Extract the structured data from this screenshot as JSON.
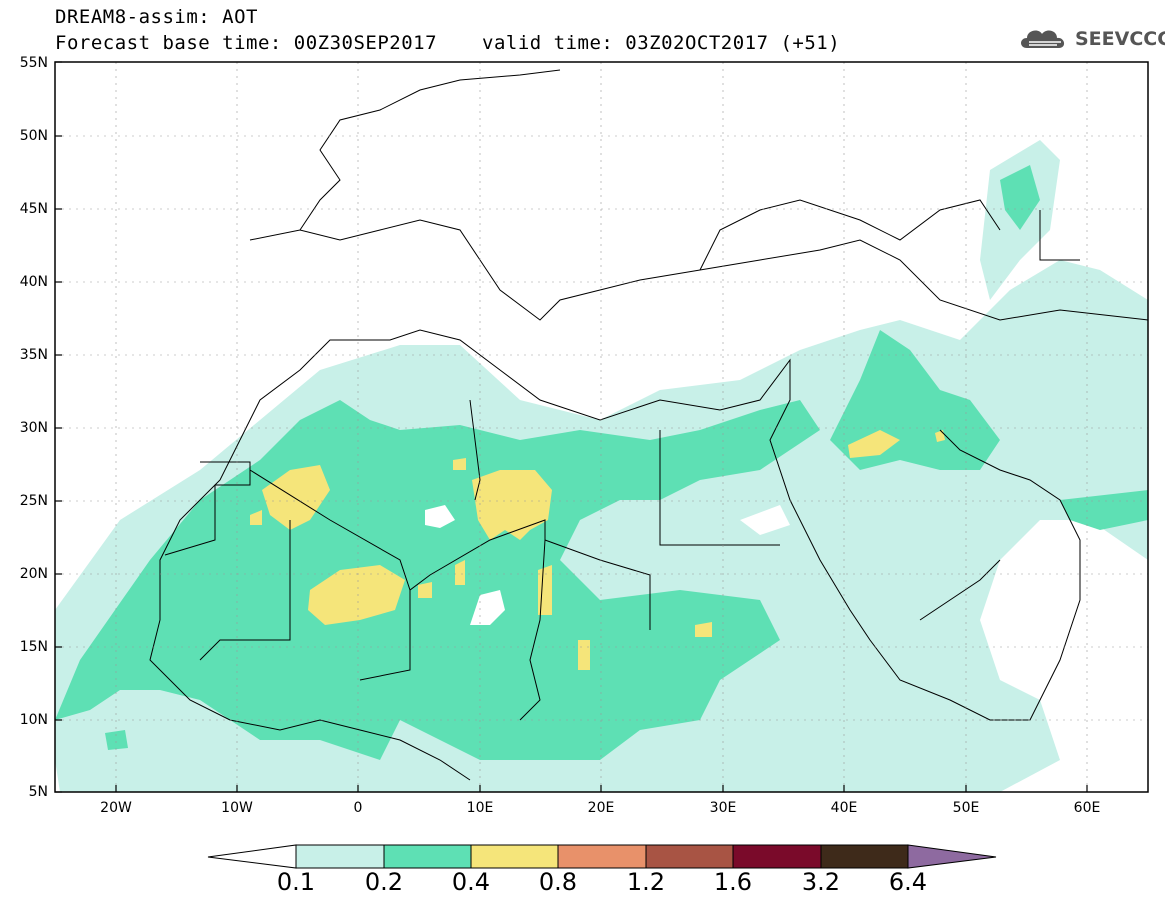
{
  "title": {
    "line1": "DREAM8-assim: AOT",
    "line2": "Forecast base time: 00Z30SEP2017",
    "valid": "valid time: 03Z02OCT2017 (+51)"
  },
  "logo": {
    "text": "SEEVCCC",
    "icon": "cloud-icon"
  },
  "map": {
    "lat_labels": [
      "55N",
      "50N",
      "45N",
      "40N",
      "35N",
      "30N",
      "25N",
      "20N",
      "15N",
      "10N",
      "5N"
    ],
    "lon_labels": [
      "20W",
      "10W",
      "0",
      "10E",
      "20E",
      "30E",
      "40E",
      "50E",
      "60E"
    ],
    "lon_range": [
      -25,
      65
    ],
    "lat_range": [
      5,
      55
    ],
    "grid": true
  },
  "colorbar": {
    "labels": [
      "0.1",
      "0.2",
      "0.4",
      "0.8",
      "1.2",
      "1.6",
      "3.2",
      "6.4"
    ],
    "colors": [
      "#ffffff",
      "#c8f0e8",
      "#5ee0b4",
      "#f5e57a",
      "#e8916a",
      "#a85444",
      "#7a0a2a",
      "#3e2a1a",
      "#8e6aa0"
    ]
  },
  "colors": {
    "level_0_1": "#c8f0e8",
    "level_0_2": "#5ee0b4",
    "level_0_4": "#f5e57a"
  }
}
